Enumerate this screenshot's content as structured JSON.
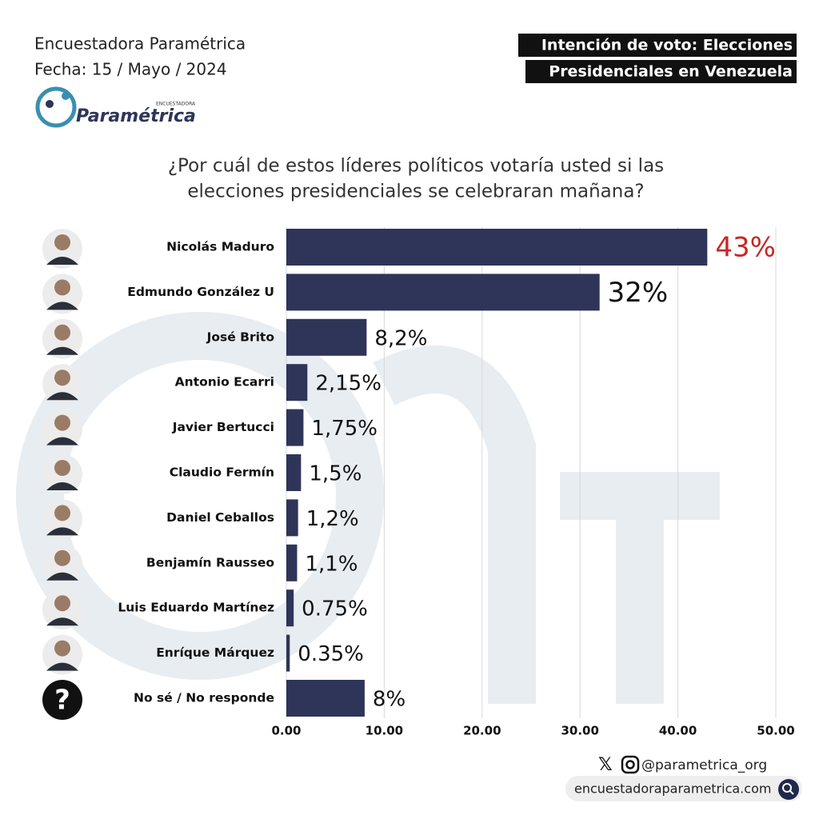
{
  "source": "Encuestadora Paramétrica",
  "date": "Fecha: 15 / Mayo / 2024",
  "logo": {
    "small": "ENCUESTADORA",
    "name": "Paramétrica"
  },
  "badge": [
    "Intención de voto: Elecciones",
    "Presidenciales en Venezuela"
  ],
  "footer": {
    "handle": "@parametrica_org",
    "website": "encuestadoraparametrica.com"
  },
  "chart_data": {
    "type": "barh",
    "title": [
      "¿Por cuál de estos líderes políticos votaría usted si las",
      "elecciones presidenciales se celebraran mañana?"
    ],
    "categories": [
      "Nicolás Maduro",
      "Edmundo González U",
      "José Brito",
      "Antonio Ecarri",
      "Javier Bertucci",
      "Claudio Fermín",
      "Daniel Ceballos",
      "Benjamín Rausseo",
      "Luis Eduardo Martínez",
      "Enríque Márquez",
      "No sé / No responde"
    ],
    "values": [
      43,
      32,
      8.2,
      2.15,
      1.75,
      1.5,
      1.2,
      1.1,
      0.75,
      0.35,
      8
    ],
    "value_labels": [
      "43%",
      "32%",
      "8,2%",
      "2,15%",
      "1,75%",
      "1,5%",
      "1,2%",
      "1,1%",
      "0.75%",
      "0.35%",
      "8%"
    ],
    "value_label_colors": [
      "#c62828",
      "#111111",
      "#111111",
      "#111111",
      "#111111",
      "#111111",
      "#111111",
      "#111111",
      "#111111",
      "#111111",
      "#111111"
    ],
    "unknown_icon": "?",
    "color": "#2e3558",
    "xlim": [
      0,
      50
    ],
    "xticks": [
      {
        "value": 0,
        "label": "0.00"
      },
      {
        "value": 10,
        "label": "10.00"
      },
      {
        "value": 20,
        "label": "20.00"
      },
      {
        "value": 30,
        "label": "30.00"
      },
      {
        "value": 40,
        "label": "40.00"
      },
      {
        "value": 50,
        "label": "50.00"
      }
    ],
    "grid": true
  }
}
